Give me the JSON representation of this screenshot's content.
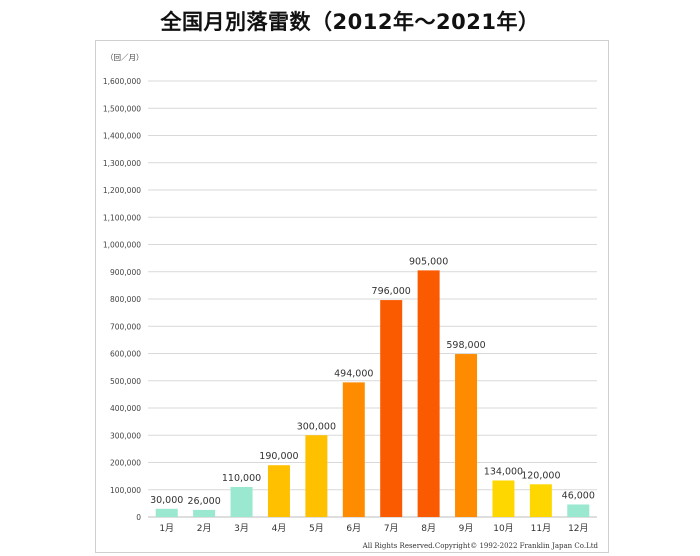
{
  "title": "全国月別落雷数（2012年～2021年）",
  "chart_data": {
    "type": "bar",
    "title": "全国月別落雷数（2012年～2021年）",
    "unit_label": "（回／月）",
    "categories": [
      "1月",
      "2月",
      "3月",
      "4月",
      "5月",
      "6月",
      "7月",
      "8月",
      "9月",
      "10月",
      "11月",
      "12月"
    ],
    "values": [
      30000,
      26000,
      110000,
      190000,
      300000,
      494000,
      796000,
      905000,
      598000,
      134000,
      120000,
      46000
    ],
    "value_labels": [
      "30,000",
      "26,000",
      "110,000",
      "190,000",
      "300,000",
      "494,000",
      "796,000",
      "905,000",
      "598,000",
      "134,000",
      "120,000",
      "46,000"
    ],
    "bar_colors": [
      "#99e8cf",
      "#99e8cf",
      "#99e8cf",
      "#ffc000",
      "#ffc000",
      "#ff8c00",
      "#fa5a00",
      "#fa5a00",
      "#ff8c00",
      "#ffd700",
      "#ffd700",
      "#99e8cf"
    ],
    "ylim": [
      0,
      1600000
    ],
    "yticks": [
      0,
      100000,
      200000,
      300000,
      400000,
      500000,
      600000,
      700000,
      800000,
      900000,
      1000000,
      1100000,
      1200000,
      1300000,
      1400000,
      1500000,
      1600000
    ],
    "ytick_labels": [
      "0",
      "100,000",
      "200,000",
      "300,000",
      "400,000",
      "500,000",
      "600,000",
      "700,000",
      "800,000",
      "900,000",
      "1,000,000",
      "1,100,000",
      "1,200,000",
      "1,300,000",
      "1,400,000",
      "1,500,000",
      "1,600,000"
    ],
    "grid": true,
    "xlabel": "",
    "ylabel": ""
  },
  "copyright": "All Rights Reserved.Copyright© 1992-2022 Franklin Japan Co.Ltd"
}
